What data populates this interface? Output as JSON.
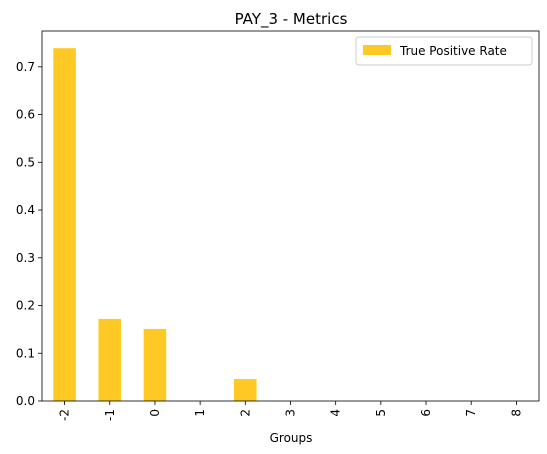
{
  "chart_data": {
    "type": "bar",
    "title": "PAY_3 - Metrics",
    "xlabel": "Groups",
    "ylabel": "",
    "categories": [
      "-2",
      "-1",
      "0",
      "1",
      "2",
      "3",
      "4",
      "5",
      "6",
      "7",
      "8"
    ],
    "series": [
      {
        "name": "True Positive Rate",
        "color": "#fec925",
        "values": [
          0.739,
          0.172,
          0.151,
          0.0,
          0.046,
          0.0,
          0.0,
          0.0,
          0.0,
          0.0,
          0.0
        ]
      }
    ],
    "ylim": [
      0,
      0.775
    ],
    "yticks": [
      "0.0",
      "0.1",
      "0.2",
      "0.3",
      "0.4",
      "0.5",
      "0.6",
      "0.7"
    ],
    "grid": false,
    "legend": "top-right"
  }
}
